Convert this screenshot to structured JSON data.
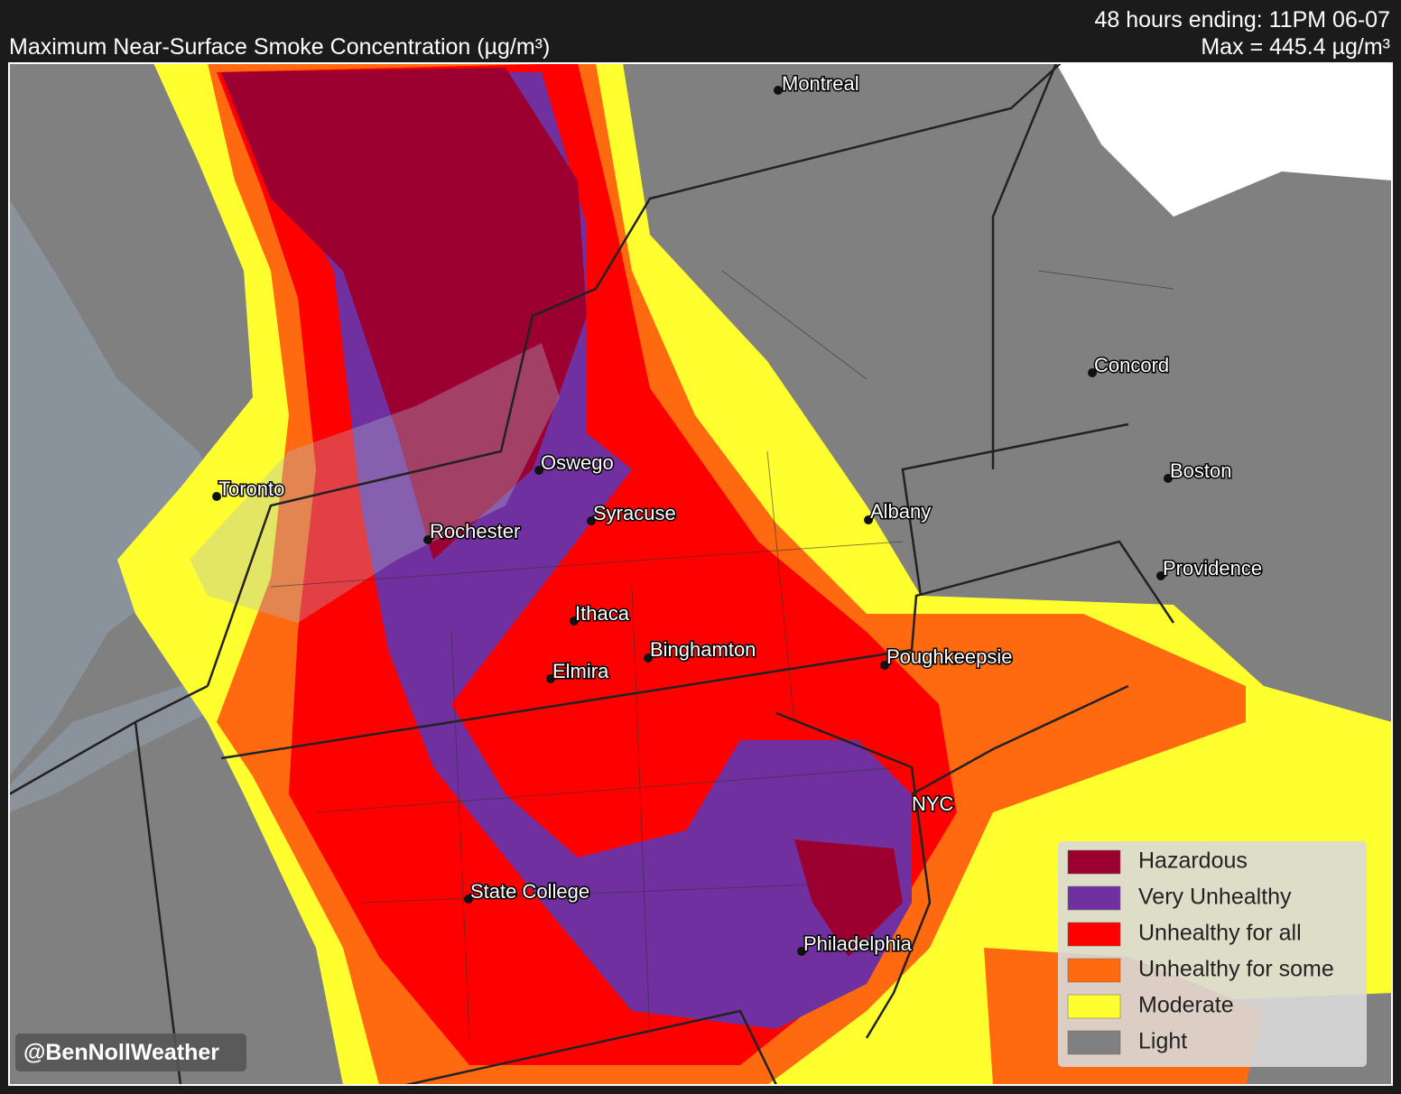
{
  "header": {
    "title": "Maximum Near-Surface Smoke Concentration (µg/m³)",
    "period": "48 hours ending: 11PM 06-07",
    "max": "Max = 445.4 µg/m³"
  },
  "cities": [
    "Montreal",
    "Concord",
    "Toronto",
    "Oswego",
    "Boston",
    "Syracuse",
    "Albany",
    "Rochester",
    "Providence",
    "Ithaca",
    "Binghamton",
    "Poughkeepsie",
    "Elmira",
    "NYC",
    "State College",
    "Philadelphia"
  ],
  "legend": [
    {
      "label": "Hazardous",
      "color": "#9b0030"
    },
    {
      "label": "Very Unhealthy",
      "color": "#7030a0"
    },
    {
      "label": "Unhealthy for all",
      "color": "#ff0000"
    },
    {
      "label": "Unhealthy for some",
      "color": "#ff6a10"
    },
    {
      "label": "Moderate",
      "color": "#ffff30"
    },
    {
      "label": "Light",
      "color": "#808080"
    }
  ],
  "watermark": "@BenNollWeather"
}
